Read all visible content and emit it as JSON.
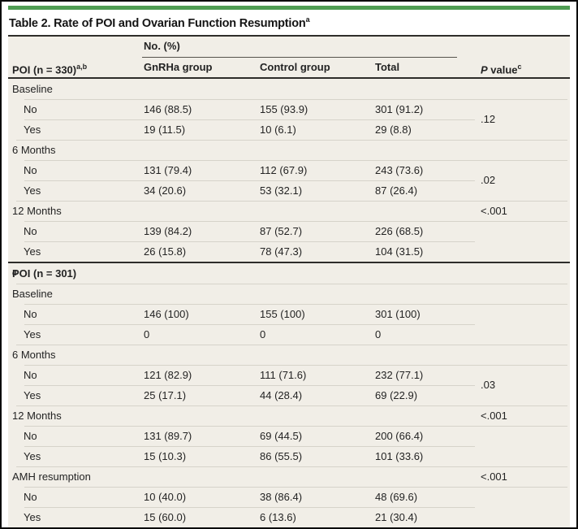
{
  "title": {
    "text": "Table 2. Rate of POI and Ovarian Function Resumption",
    "footnote_sup": "a"
  },
  "colors": {
    "accent_green": "#4f9d53",
    "table_background": "#f1eee7",
    "rule_dark": "#2e2d2a",
    "rule_light": "#d6d3ca",
    "text": "#232323"
  },
  "header": {
    "stub": {
      "text": "POI (n = 330)",
      "sup": "a,b"
    },
    "group_label": "No. (%)",
    "columns": [
      "GnRHa group",
      "Control group",
      "Total"
    ],
    "p_column": {
      "italic_prefix": "P",
      "text": " value",
      "sup": "c"
    }
  },
  "groups": [
    {
      "header": null,
      "sections": [
        {
          "label": "Baseline",
          "p_value": ".12",
          "p_position": "middle",
          "rows": [
            {
              "label": "No",
              "gnrha": "146 (88.5)",
              "control": "155 (93.9)",
              "total": "301 (91.2)"
            },
            {
              "label": "Yes",
              "gnrha": "19 (11.5)",
              "control": "10 (6.1)",
              "total": "29 (8.8)"
            }
          ]
        },
        {
          "label": "6 Months",
          "p_value": ".02",
          "p_position": "middle",
          "rows": [
            {
              "label": "No",
              "gnrha": "131 (79.4)",
              "control": "112 (67.9)",
              "total": "243 (73.6)"
            },
            {
              "label": "Yes",
              "gnrha": "34 (20.6)",
              "control": "53 (32.1)",
              "total": "87 (26.4)"
            }
          ]
        },
        {
          "label": "12 Months",
          "p_value": "<.001",
          "p_position": "header",
          "rows": [
            {
              "label": "No",
              "gnrha": "139 (84.2)",
              "control": "87 (52.7)",
              "total": "226 (68.5)"
            },
            {
              "label": "Yes",
              "gnrha": "26 (15.8)",
              "control": "78 (47.3)",
              "total": "104 (31.5)"
            }
          ]
        }
      ]
    },
    {
      "header": {
        "text": "POI (n = 301)",
        "sup": "d"
      },
      "sections": [
        {
          "label": "Baseline",
          "p_value": "",
          "p_position": "none",
          "rows": [
            {
              "label": "No",
              "gnrha": "146 (100)",
              "control": "155 (100)",
              "total": "301 (100)"
            },
            {
              "label": "Yes",
              "gnrha": "0",
              "control": "0",
              "total": "0"
            }
          ]
        },
        {
          "label": "6 Months",
          "p_value": ".03",
          "p_position": "middle",
          "rows": [
            {
              "label": "No",
              "gnrha": "121 (82.9)",
              "control": "111 (71.6)",
              "total": "232 (77.1)"
            },
            {
              "label": "Yes",
              "gnrha": "25 (17.1)",
              "control": "44 (28.4)",
              "total": "69 (22.9)"
            }
          ]
        },
        {
          "label": "12 Months",
          "p_value": "<.001",
          "p_position": "header",
          "rows": [
            {
              "label": "No",
              "gnrha": "131 (89.7)",
              "control": "69 (44.5)",
              "total": "200 (66.4)"
            },
            {
              "label": "Yes",
              "gnrha": "15 (10.3)",
              "control": "86 (55.5)",
              "total": "101 (33.6)"
            }
          ]
        },
        {
          "label": "AMH resumption",
          "p_value": "<.001",
          "p_position": "header",
          "rows": [
            {
              "label": "No",
              "gnrha": "10 (40.0)",
              "control": "38 (86.4)",
              "total": "48 (69.6)"
            },
            {
              "label": "Yes",
              "gnrha": "15 (60.0)",
              "control": "6 (13.6)",
              "total": "21 (30.4)"
            }
          ]
        }
      ]
    }
  ]
}
